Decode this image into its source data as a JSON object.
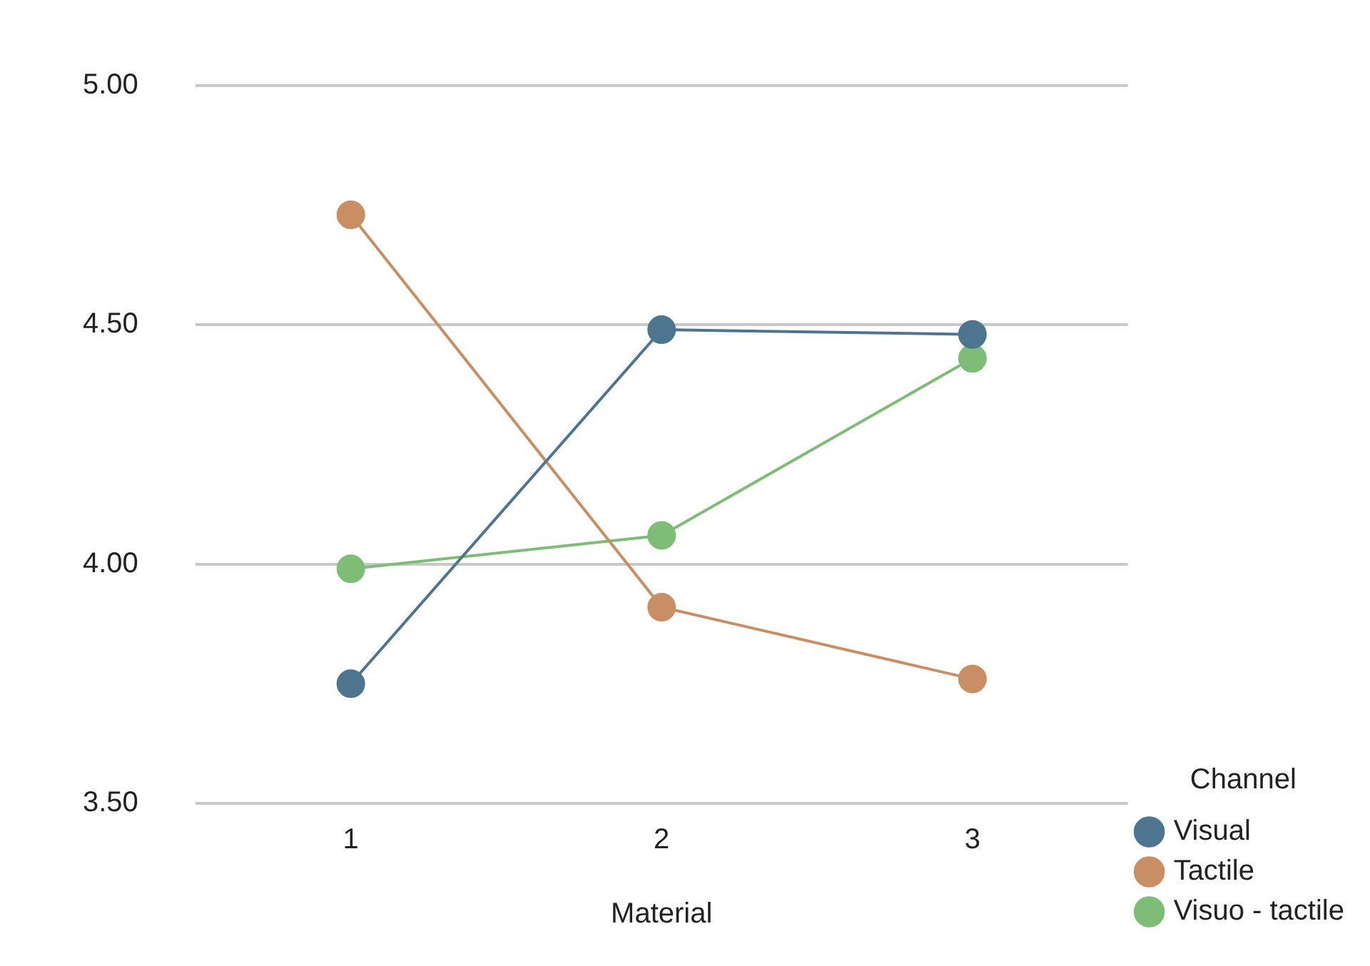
{
  "chart_data": {
    "type": "line",
    "xlabel": "Material",
    "legend_title": "Channel",
    "categories": [
      "1",
      "2",
      "3"
    ],
    "series": [
      {
        "name": "Visual",
        "color": "#4e7590",
        "values": [
          3.75,
          4.49,
          4.48
        ]
      },
      {
        "name": "Tactile",
        "color": "#c98e63",
        "values": [
          4.73,
          3.91,
          3.76
        ]
      },
      {
        "name": "Visuo - tactile",
        "color": "#7dbd76",
        "values": [
          3.99,
          4.06,
          4.43
        ]
      }
    ],
    "ylim": [
      3.5,
      5
    ],
    "yticks": [
      {
        "value": 3.5,
        "label": "3.50"
      },
      {
        "value": 4,
        "label": "4.00"
      },
      {
        "value": 4.5,
        "label": "4.50"
      },
      {
        "value": 5,
        "label": "5.00"
      }
    ],
    "grid": "y",
    "legend": "bottom right",
    "marker": "circle",
    "line_style": "solid"
  }
}
